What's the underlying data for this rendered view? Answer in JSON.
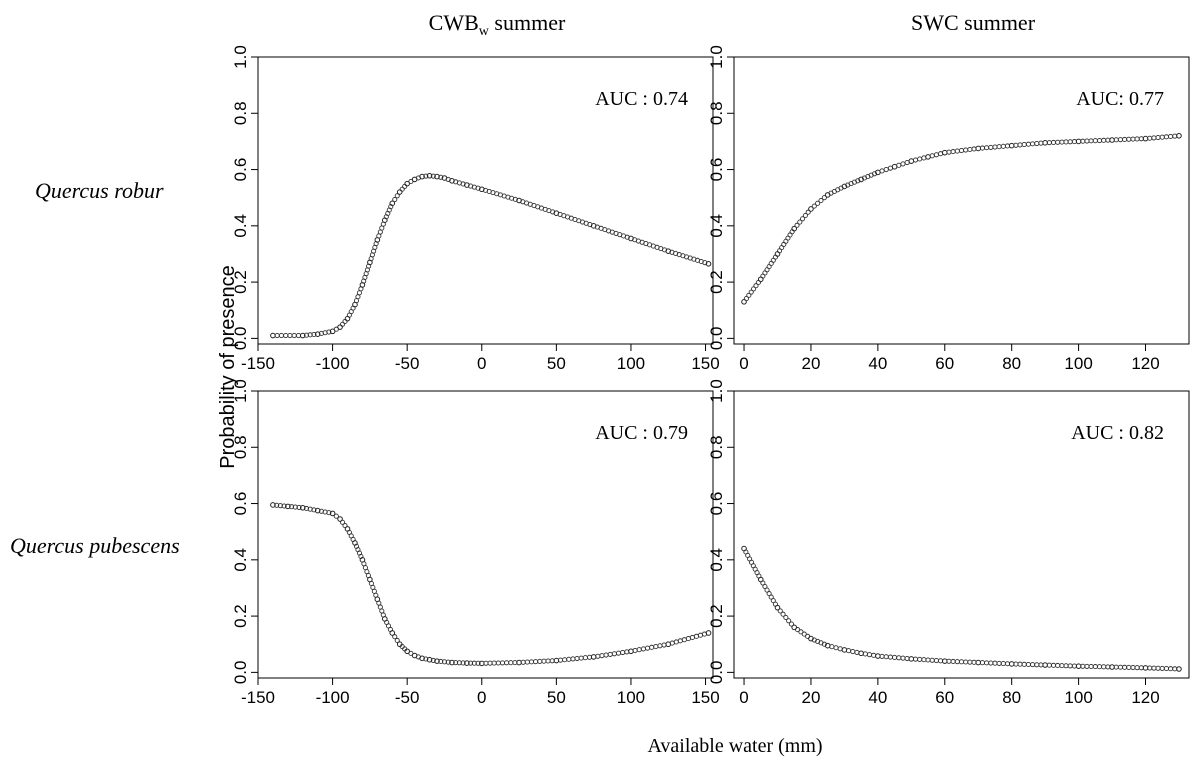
{
  "figure": {
    "column_titles": [
      {
        "main": "CWB",
        "sub": "w",
        "rest": " summer"
      },
      {
        "main": "SWC summer",
        "sub": "",
        "rest": ""
      }
    ],
    "row_labels": [
      "Quercus robur",
      "Quercus pubescens"
    ],
    "ylabel": "Probability of presence",
    "xlabel": "Available water (mm)"
  },
  "chart_data": [
    {
      "type": "scatter",
      "species": "Quercus robur",
      "variable": "CWBw summer",
      "annotation": "AUC : 0.74",
      "xlim": [
        -150,
        155
      ],
      "ylim": [
        -0.02,
        1.0
      ],
      "xticks": [
        -150,
        -100,
        -50,
        0,
        50,
        100,
        150
      ],
      "yticks": [
        0.0,
        0.2,
        0.4,
        0.6,
        0.8,
        1.0
      ],
      "x": [
        -140,
        -120,
        -110,
        -100,
        -95,
        -90,
        -85,
        -80,
        -75,
        -70,
        -65,
        -60,
        -55,
        -50,
        -45,
        -40,
        -35,
        -30,
        -25,
        -20,
        -10,
        0,
        25,
        50,
        75,
        100,
        125,
        152
      ],
      "y": [
        0.01,
        0.01,
        0.015,
        0.025,
        0.04,
        0.07,
        0.12,
        0.19,
        0.27,
        0.35,
        0.42,
        0.48,
        0.52,
        0.55,
        0.565,
        0.575,
        0.578,
        0.575,
        0.57,
        0.56,
        0.545,
        0.53,
        0.49,
        0.445,
        0.4,
        0.355,
        0.31,
        0.265
      ]
    },
    {
      "type": "scatter",
      "species": "Quercus robur",
      "variable": "SWC summer",
      "annotation": "AUC: 0.77",
      "xlim": [
        -3,
        133
      ],
      "ylim": [
        -0.02,
        1.0
      ],
      "xticks": [
        0,
        20,
        40,
        60,
        80,
        100,
        120
      ],
      "yticks": [
        0.0,
        0.2,
        0.4,
        0.6,
        0.8,
        1.0
      ],
      "x": [
        0,
        5,
        10,
        15,
        20,
        25,
        30,
        35,
        40,
        45,
        50,
        55,
        60,
        70,
        80,
        90,
        100,
        110,
        120,
        130
      ],
      "y": [
        0.13,
        0.21,
        0.3,
        0.39,
        0.46,
        0.51,
        0.54,
        0.565,
        0.59,
        0.61,
        0.63,
        0.645,
        0.66,
        0.675,
        0.685,
        0.695,
        0.7,
        0.705,
        0.71,
        0.72
      ]
    },
    {
      "type": "scatter",
      "species": "Quercus pubescens",
      "variable": "CWBw summer",
      "annotation": "AUC : 0.79",
      "xlim": [
        -150,
        155
      ],
      "ylim": [
        -0.02,
        1.0
      ],
      "xticks": [
        -150,
        -100,
        -50,
        0,
        50,
        100,
        150
      ],
      "yticks": [
        0.0,
        0.2,
        0.4,
        0.6,
        0.8,
        1.0
      ],
      "x": [
        -140,
        -130,
        -120,
        -110,
        -100,
        -95,
        -90,
        -85,
        -80,
        -75,
        -70,
        -65,
        -60,
        -55,
        -50,
        -45,
        -40,
        -35,
        -30,
        -20,
        -10,
        0,
        25,
        50,
        75,
        100,
        125,
        152
      ],
      "y": [
        0.595,
        0.59,
        0.585,
        0.575,
        0.565,
        0.545,
        0.51,
        0.46,
        0.4,
        0.33,
        0.26,
        0.19,
        0.14,
        0.1,
        0.075,
        0.06,
        0.05,
        0.045,
        0.04,
        0.035,
        0.033,
        0.032,
        0.035,
        0.042,
        0.055,
        0.075,
        0.1,
        0.14
      ]
    },
    {
      "type": "scatter",
      "species": "Quercus pubescens",
      "variable": "SWC summer",
      "annotation": "AUC : 0.82",
      "xlim": [
        -3,
        133
      ],
      "ylim": [
        -0.02,
        1.0
      ],
      "xticks": [
        0,
        20,
        40,
        60,
        80,
        100,
        120
      ],
      "yticks": [
        0.0,
        0.2,
        0.4,
        0.6,
        0.8,
        1.0
      ],
      "x": [
        0,
        5,
        10,
        15,
        20,
        25,
        30,
        35,
        40,
        50,
        60,
        70,
        80,
        90,
        100,
        110,
        120,
        130
      ],
      "y": [
        0.44,
        0.33,
        0.23,
        0.16,
        0.12,
        0.095,
        0.08,
        0.068,
        0.058,
        0.048,
        0.04,
        0.035,
        0.03,
        0.026,
        0.022,
        0.019,
        0.016,
        0.012
      ]
    }
  ]
}
